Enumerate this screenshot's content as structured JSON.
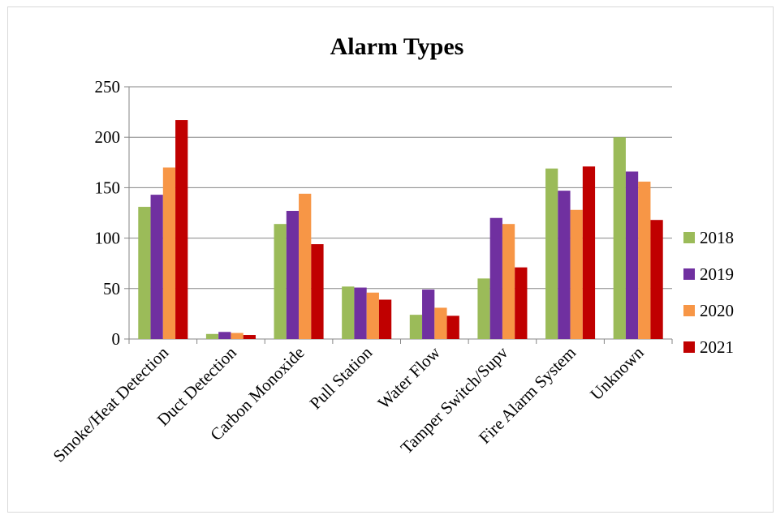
{
  "chart_data": {
    "type": "bar",
    "title": "Alarm Types",
    "xlabel": "",
    "ylabel": "",
    "categories": [
      "Smoke/Heat Detection",
      "Duct Detection",
      "Carbon Monoxide",
      "Pull Station",
      "Water Flow",
      "Tamper Switch/Supv",
      "Fire Alarm System",
      "Unknown"
    ],
    "series": [
      {
        "name": "2018",
        "color": "#9bbb59",
        "values": [
          131,
          5,
          114,
          52,
          24,
          60,
          169,
          200
        ]
      },
      {
        "name": "2019",
        "color": "#7030a0",
        "values": [
          143,
          7,
          127,
          51,
          49,
          120,
          147,
          166
        ]
      },
      {
        "name": "2020",
        "color": "#f79646",
        "values": [
          170,
          6,
          144,
          46,
          31,
          114,
          128,
          156
        ]
      },
      {
        "name": "2021",
        "color": "#c00000",
        "values": [
          217,
          4,
          94,
          39,
          23,
          71,
          171,
          118
        ]
      }
    ],
    "ylim": [
      0,
      250
    ],
    "yticks": [
      0,
      50,
      100,
      150,
      200,
      250
    ],
    "grid": true,
    "legend_position": "right"
  }
}
